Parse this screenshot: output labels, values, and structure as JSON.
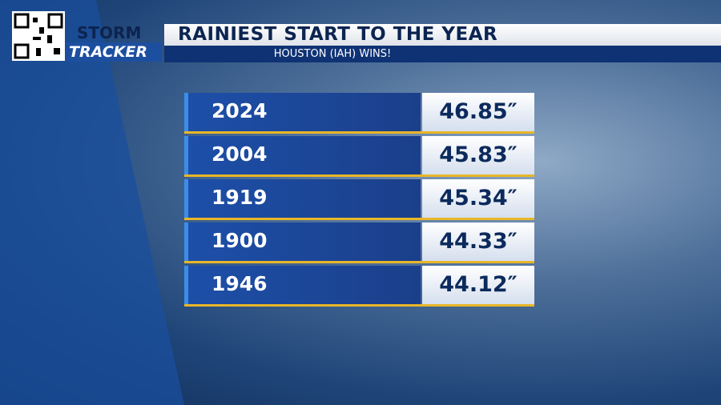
{
  "header": {
    "logo_top": "STORM",
    "logo_bottom": "TRACKER",
    "title": "RAINIEST START TO THE YEAR",
    "subtitle": "HOUSTON (IAH) WINS!"
  },
  "table": {
    "rows": [
      [
        "2024",
        "46.85″"
      ],
      [
        "2004",
        "45.83″"
      ],
      [
        "1919",
        "45.34″"
      ],
      [
        "1900",
        "44.33″"
      ],
      [
        "1946",
        "44.12″"
      ]
    ]
  }
}
